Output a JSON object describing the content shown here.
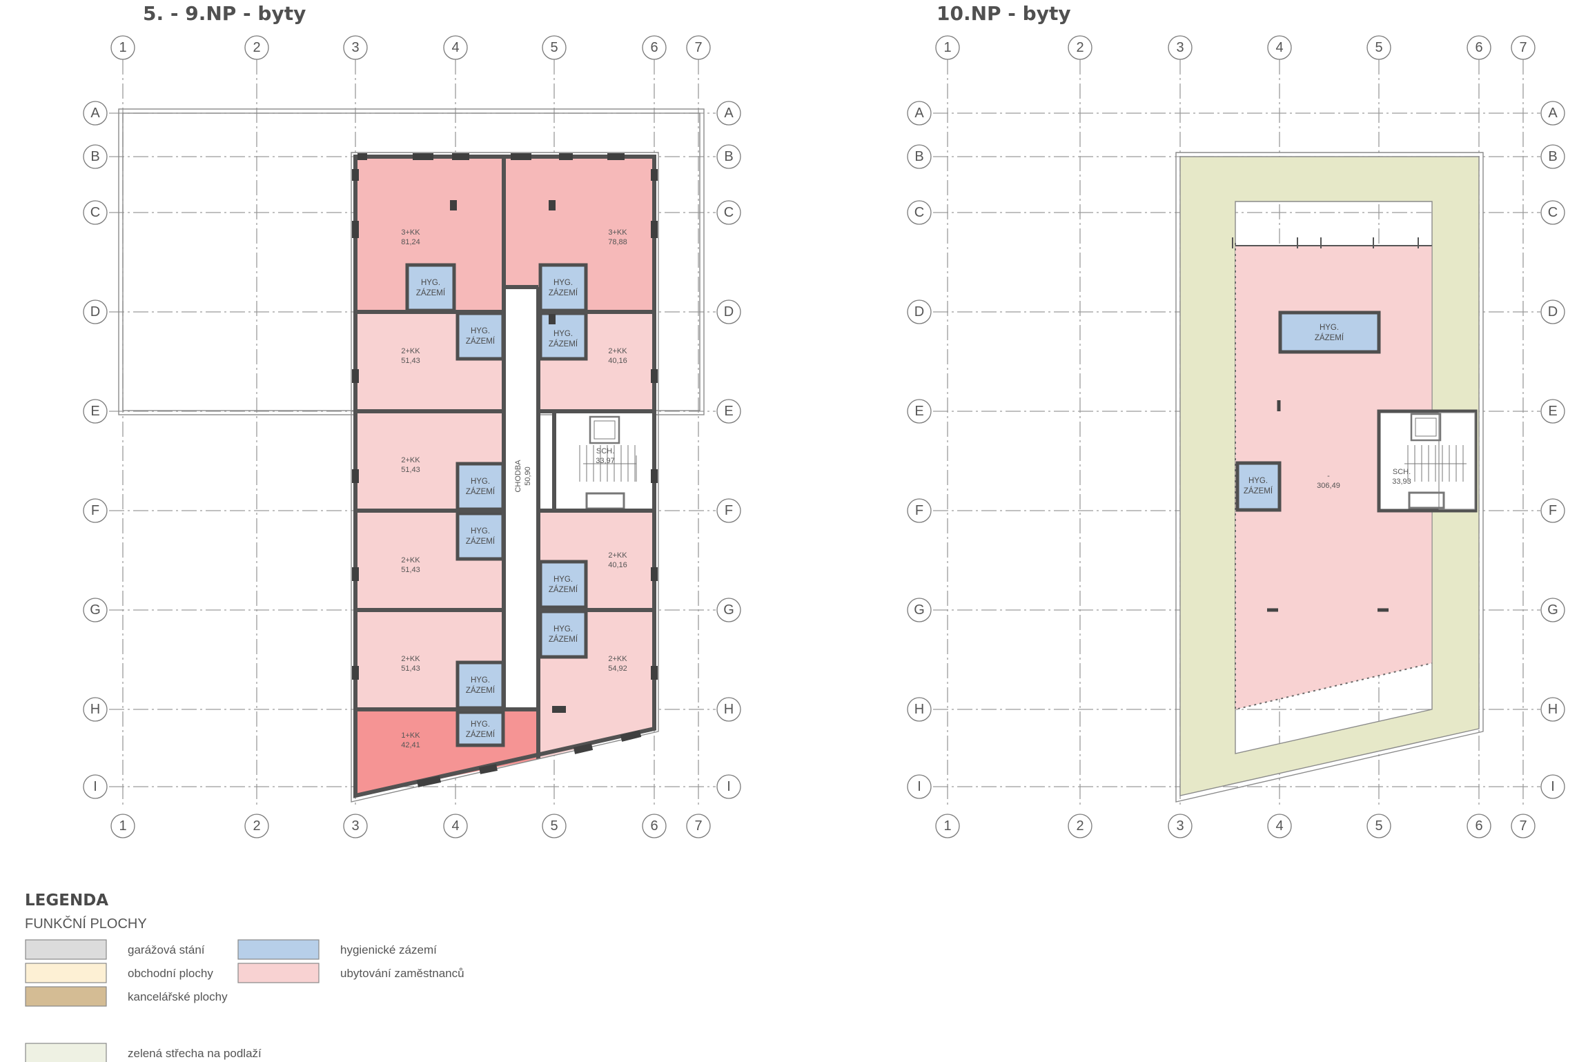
{
  "plans": [
    {
      "title": "5. - 9.NP - byty",
      "cols": [
        "1",
        "2",
        "3",
        "4",
        "5",
        "6",
        "7"
      ],
      "rows": [
        "A",
        "B",
        "C",
        "D",
        "E",
        "F",
        "G",
        "H",
        "I"
      ],
      "units": [
        {
          "type": "3+KK",
          "area": "81,24"
        },
        {
          "type": "3+KK",
          "area": "78,88"
        },
        {
          "type": "2+KK",
          "area": "51,43"
        },
        {
          "type": "2+KK",
          "area": "40,16"
        },
        {
          "type": "2+KK",
          "area": "51,43"
        },
        {
          "type": "2+KK",
          "area": "51,43"
        },
        {
          "type": "2+KK",
          "area": "40,16"
        },
        {
          "type": "2+KK",
          "area": "51,43"
        },
        {
          "type": "2+KK",
          "area": "54,92"
        },
        {
          "type": "1+KK",
          "area": "42,41"
        }
      ],
      "hyg_label": [
        "HYG.",
        "ZÁZEMÍ"
      ],
      "corridor": {
        "name": "CHODBA",
        "area": "50,90"
      },
      "stair": {
        "name": "SCH.",
        "area": "33,97"
      }
    },
    {
      "title": "10.NP - byty",
      "cols": [
        "1",
        "2",
        "3",
        "4",
        "5",
        "6",
        "7"
      ],
      "rows": [
        "A",
        "B",
        "C",
        "D",
        "E",
        "F",
        "G",
        "H",
        "I"
      ],
      "hall": {
        "type": "-",
        "area": "306,49"
      },
      "hyg_label": [
        "HYG.",
        "ZÁZEMÍ"
      ],
      "stair": {
        "name": "SCH.",
        "area": "33,93"
      }
    }
  ],
  "legend": {
    "title": "LEGENDA",
    "subtitle": "FUNKČNÍ PLOCHY",
    "items": [
      {
        "label": "garážová stání",
        "color": "#dcdcdc"
      },
      {
        "label": "obchodní plochy",
        "color": "#fdf0d4"
      },
      {
        "label": "kancelářské plochy",
        "color": "#d4bc94"
      },
      {
        "label": "hygienické zázemí",
        "color": "#b7cfe9"
      },
      {
        "label": "ubytování zaměstnanců",
        "color": "#f8d2d2"
      },
      {
        "label": "zelená střecha na podlaží",
        "color": "#eef1e3"
      }
    ]
  },
  "colors": {
    "unit_3kk": "#f6b9b9",
    "unit_2kk": "#f8d2d2",
    "unit_1kk": "#f59494",
    "hygiene": "#b7cfe9",
    "green_roof": "#e6e8c8",
    "wall": "#525252"
  }
}
